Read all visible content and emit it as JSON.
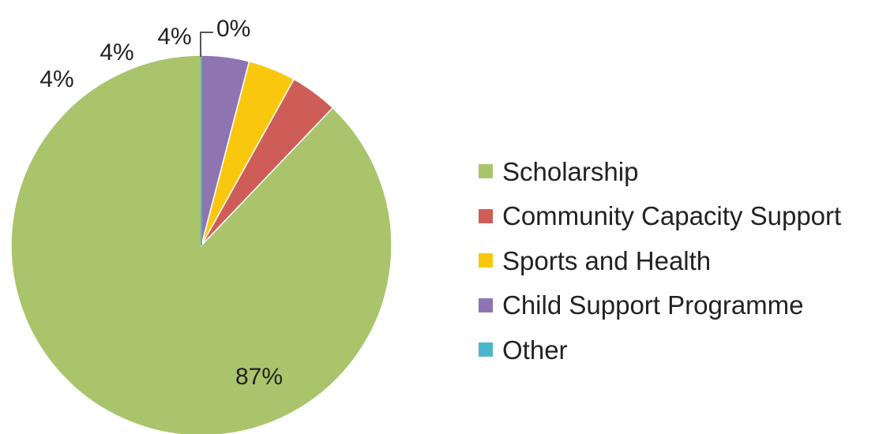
{
  "chart_data": {
    "type": "pie",
    "title": "",
    "categories": [
      "Scholarship",
      "Community Capacity Support",
      "Sports and Health",
      "Child Support Programme",
      "Other"
    ],
    "values": [
      87,
      4,
      4,
      4,
      0
    ],
    "value_labels": [
      "87%",
      "4%",
      "4%",
      "4%",
      "0%"
    ],
    "colors": [
      "#a9c46b",
      "#cf5d57",
      "#f9c80e",
      "#8e75b2",
      "#4cb6cb"
    ],
    "legend_position": "right",
    "start_angle_deg": 0,
    "direction": "counterclockwise"
  }
}
